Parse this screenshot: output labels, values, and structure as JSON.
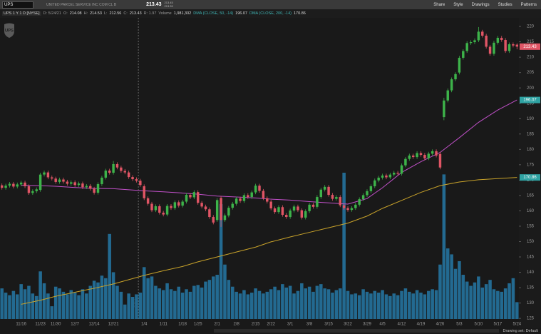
{
  "header": {
    "symbol": "UPS",
    "company": "UNITED PARCEL SERVICE INC COM CL B",
    "bid": "213.45",
    "ask": "213.39",
    "buttons": [
      "Share",
      "Style",
      "Drawings",
      "Studies",
      "Patterns"
    ],
    "chart_label": "UPS 1 Y 1 D [NYSE]",
    "date": "D: 5/24/21",
    "o_label": "O:",
    "h_label": "H:",
    "l_label": "L:",
    "c_label": "C:",
    "range": "R: 1.97",
    "volume_label": "Volume",
    "volume": "1,981,302",
    "logo": "UPS"
  },
  "footer": {
    "drawing_set": "Drawing set: Default"
  },
  "chart_data": {
    "type": "candlestick",
    "up_color": "#3db34a",
    "down_color": "#e05565",
    "separator_label": "2021",
    "categories": [
      null,
      null,
      null,
      null,
      null,
      "11/16",
      null,
      null,
      null,
      null,
      "11/23",
      null,
      null,
      null,
      "11/30",
      null,
      null,
      null,
      null,
      "12/7",
      null,
      null,
      null,
      null,
      "12/14",
      null,
      null,
      null,
      null,
      "12/21",
      null,
      null,
      null,
      null,
      null,
      null,
      null,
      "1/4",
      null,
      null,
      null,
      null,
      "1/11",
      null,
      null,
      null,
      null,
      "1/18",
      null,
      null,
      null,
      "1/25",
      null,
      null,
      null,
      null,
      "2/1",
      null,
      null,
      null,
      null,
      "2/8",
      null,
      null,
      null,
      null,
      "2/15",
      null,
      null,
      null,
      "2/22",
      null,
      null,
      null,
      null,
      "3/1",
      null,
      null,
      null,
      null,
      "3/8",
      null,
      null,
      null,
      null,
      "3/15",
      null,
      null,
      null,
      null,
      "3/22",
      null,
      null,
      null,
      null,
      "3/29",
      null,
      null,
      null,
      "4/5",
      null,
      null,
      null,
      null,
      "4/12",
      null,
      null,
      null,
      null,
      "4/19",
      null,
      null,
      null,
      null,
      "4/26",
      null,
      null,
      null,
      null,
      "5/3",
      null,
      null,
      null,
      null,
      "5/10",
      null,
      null,
      null,
      null,
      "5/17",
      null,
      null,
      null,
      null,
      "5/24"
    ],
    "open": [
      168.3,
      167.5,
      168.2,
      168.8,
      167.9,
      168.6,
      169.2,
      168.0,
      165.8,
      166.4,
      166.8,
      171.8,
      172.5,
      170.9,
      170.5,
      169.4,
      170.2,
      169.5,
      168.8,
      169.3,
      168.4,
      168.9,
      167.7,
      168.1,
      167.2,
      165.9,
      168.7,
      170.8,
      173.1,
      172.4,
      175.2,
      174.1,
      173.0,
      172.5,
      171.0,
      170.3,
      169.8,
      168.0,
      164.1,
      162.3,
      160.2,
      161.5,
      159.4,
      158.8,
      161.6,
      160.9,
      162.8,
      161.7,
      163.0,
      165.2,
      164.4,
      166.1,
      162.6,
      161.4,
      160.5,
      158.0,
      157.0,
      164.2,
      157.0,
      158.5,
      161.0,
      162.3,
      164.0,
      163.2,
      165.1,
      164.5,
      166.0,
      168.2,
      166.5,
      164.1,
      163.0,
      160.8,
      159.6,
      161.2,
      158.7,
      158.0,
      160.1,
      161.4,
      160.2,
      157.8,
      159.9,
      162.0,
      161.3,
      164.5,
      166.9,
      167.8,
      165.2,
      163.9,
      164.5,
      161.8,
      160.9,
      160.3,
      160.9,
      162.0,
      163.8,
      165.1,
      166.4,
      168.0,
      169.9,
      170.8,
      171.5,
      170.9,
      171.8,
      172.4,
      172.1,
      174.8,
      176.9,
      178.0,
      177.5,
      178.8,
      178.2,
      177.1,
      178.6,
      179.4,
      178.5,
      190.5,
      195.9,
      199.2,
      202.8,
      205.0,
      209.8,
      212.0,
      214.6,
      214.9,
      215.5,
      218.3,
      217.0,
      213.4,
      211.1,
      214.7,
      216.3,
      215.6,
      212.0,
      214.2,
      214.08
    ],
    "high": [
      168.9,
      168.8,
      169.4,
      169.4,
      169.2,
      169.8,
      169.8,
      168.6,
      167.0,
      167.6,
      172.4,
      173.1,
      173.1,
      171.5,
      171.1,
      170.8,
      170.8,
      170.1,
      169.9,
      169.9,
      169.5,
      169.5,
      168.7,
      168.7,
      167.8,
      169.3,
      171.4,
      173.7,
      173.7,
      176.2,
      175.8,
      174.7,
      173.6,
      173.1,
      171.6,
      170.9,
      170.4,
      168.6,
      164.7,
      162.9,
      162.1,
      162.1,
      160.0,
      162.2,
      162.2,
      163.4,
      163.4,
      163.6,
      165.8,
      165.8,
      166.7,
      166.7,
      163.2,
      162.0,
      161.1,
      158.6,
      164.1,
      164.8,
      159.1,
      161.6,
      162.9,
      164.6,
      164.6,
      165.7,
      165.7,
      166.6,
      168.8,
      168.8,
      167.1,
      164.7,
      163.6,
      161.4,
      161.8,
      161.8,
      159.3,
      160.7,
      162.0,
      162.0,
      160.8,
      160.5,
      162.6,
      162.6,
      165.1,
      167.5,
      168.4,
      168.4,
      165.8,
      165.1,
      165.1,
      162.4,
      161.5,
      161.5,
      162.6,
      164.4,
      165.7,
      167.0,
      168.6,
      170.5,
      171.4,
      172.1,
      172.1,
      172.4,
      173.0,
      173.0,
      175.4,
      177.5,
      178.6,
      178.6,
      179.4,
      179.4,
      178.8,
      179.2,
      180.0,
      180.0,
      179.1,
      196.8,
      199.8,
      203.4,
      205.1,
      210.4,
      212.6,
      215.2,
      215.5,
      216.1,
      219.8,
      218.9,
      217.6,
      214.0,
      215.3,
      216.9,
      216.9,
      216.2,
      214.8,
      214.8,
      214.53
    ],
    "low": [
      166.9,
      166.9,
      167.6,
      167.3,
      167.3,
      168.0,
      167.4,
      165.2,
      165.2,
      165.8,
      166.2,
      171.2,
      170.3,
      169.9,
      168.8,
      168.8,
      168.9,
      168.2,
      168.2,
      167.8,
      167.8,
      167.1,
      167.1,
      166.6,
      165.3,
      165.3,
      168.1,
      170.2,
      171.8,
      171.8,
      173.5,
      172.4,
      171.9,
      170.4,
      169.7,
      169.2,
      167.8,
      163.5,
      161.7,
      159.6,
      159.6,
      158.8,
      158.2,
      158.2,
      160.3,
      160.3,
      161.1,
      161.1,
      162.4,
      163.8,
      163.8,
      162.0,
      160.8,
      159.9,
      157.4,
      155.6,
      156.4,
      154.8,
      156.4,
      157.9,
      160.4,
      161.7,
      162.6,
      162.6,
      163.9,
      163.9,
      165.4,
      165.9,
      163.5,
      162.4,
      160.2,
      159.0,
      159.0,
      158.1,
      157.4,
      157.4,
      159.5,
      159.6,
      157.2,
      157.2,
      159.3,
      160.7,
      160.7,
      163.9,
      166.3,
      164.6,
      163.3,
      163.3,
      161.2,
      160.3,
      159.7,
      159.7,
      160.3,
      161.4,
      163.2,
      164.5,
      165.8,
      167.4,
      169.3,
      170.2,
      170.3,
      170.3,
      171.2,
      171.5,
      171.5,
      174.2,
      176.3,
      176.9,
      176.9,
      177.6,
      176.5,
      176.5,
      178.0,
      177.4,
      173.5,
      189.5,
      195.3,
      198.6,
      202.2,
      204.4,
      209.2,
      211.4,
      214.0,
      214.3,
      214.9,
      216.4,
      212.8,
      210.5,
      210.5,
      214.1,
      215.0,
      211.4,
      211.4,
      213.2,
      212.56
    ],
    "close": [
      167.5,
      168.2,
      168.8,
      167.9,
      168.6,
      169.2,
      168.0,
      165.8,
      166.4,
      167.0,
      171.8,
      172.5,
      170.9,
      170.5,
      169.4,
      170.2,
      169.5,
      168.8,
      169.3,
      168.4,
      168.9,
      167.7,
      168.1,
      167.2,
      165.9,
      168.7,
      170.8,
      173.1,
      172.4,
      175.2,
      174.1,
      173.0,
      172.5,
      171.0,
      170.3,
      169.8,
      168.4,
      164.1,
      162.3,
      160.2,
      161.5,
      159.4,
      158.8,
      161.6,
      160.9,
      162.8,
      161.7,
      163.0,
      165.2,
      164.4,
      166.1,
      162.6,
      161.4,
      160.5,
      158.0,
      156.2,
      163.5,
      157.0,
      158.5,
      161.0,
      162.3,
      164.0,
      163.2,
      165.1,
      164.5,
      166.0,
      168.2,
      166.5,
      164.1,
      163.0,
      160.8,
      159.6,
      161.2,
      158.7,
      158.0,
      160.1,
      161.4,
      160.2,
      157.8,
      159.9,
      162.0,
      161.3,
      164.5,
      166.9,
      167.8,
      165.2,
      163.9,
      164.5,
      161.8,
      160.9,
      160.3,
      160.9,
      162.0,
      163.8,
      165.1,
      166.4,
      168.0,
      169.9,
      170.8,
      171.5,
      170.9,
      171.8,
      172.4,
      172.1,
      174.8,
      176.9,
      178.0,
      177.5,
      178.8,
      178.2,
      177.1,
      178.6,
      179.4,
      178.0,
      174.1,
      195.9,
      199.2,
      202.8,
      204.5,
      209.8,
      212.0,
      214.6,
      214.9,
      215.5,
      218.3,
      217.0,
      213.4,
      211.1,
      214.7,
      216.3,
      215.6,
      212.0,
      214.2,
      213.8,
      213.43
    ],
    "volume": {
      "color": "#236a91",
      "values": [
        3600000,
        3100000,
        2800000,
        3300000,
        2900000,
        4100000,
        3500000,
        3900000,
        3000000,
        2700000,
        5600000,
        4200000,
        3000000,
        1500000,
        3800000,
        3600000,
        3200000,
        2900000,
        3400000,
        3100000,
        2800000,
        3500000,
        3000000,
        3900000,
        4500000,
        4300000,
        5100000,
        4800000,
        10000000,
        5500000,
        3900000,
        3200000,
        1700000,
        3000000,
        2600000,
        2900000,
        3100000,
        6100000,
        4800000,
        5000000,
        3900000,
        3600000,
        3400000,
        4200000,
        3500000,
        3300000,
        3800000,
        3100000,
        3500000,
        3200000,
        3900000,
        4000000,
        3700000,
        4400000,
        4600000,
        5000000,
        5200000,
        13500000,
        6400000,
        4600000,
        3800000,
        3200000,
        3000000,
        3400000,
        2900000,
        3100000,
        3600000,
        3300000,
        3000000,
        3200000,
        3500000,
        3800000,
        3400000,
        4100000,
        3700000,
        3900000,
        3000000,
        3300000,
        4200000,
        3600000,
        3800000,
        3200000,
        3900000,
        4100000,
        3600000,
        3500000,
        3100000,
        3400000,
        3600000,
        17200000,
        3300000,
        2900000,
        3000000,
        2800000,
        3500000,
        3200000,
        3000000,
        3300000,
        3100000,
        3400000,
        2900000,
        2700000,
        3000000,
        2800000,
        3300000,
        3600000,
        3200000,
        3000000,
        3400000,
        3100000,
        2900000,
        3300000,
        3500000,
        3400000,
        6400000,
        17000000,
        8300000,
        7600000,
        5900000,
        6800000,
        5200000,
        4400000,
        3900000,
        4300000,
        5000000,
        3700000,
        4100000,
        4600000,
        3500000,
        3300000,
        3200000,
        3600000,
        4200000,
        4800000,
        1981302
      ]
    },
    "lines": [
      {
        "name": "DMA (CLOSE, 50, -14)",
        "color": "#c050c8",
        "label_color": "#2fa3a3",
        "x": [
          "11/16",
          "11/23",
          "11/30",
          "12/7",
          "12/14",
          "12/21",
          "1/4",
          "1/11",
          "1/18",
          "1/25",
          "2/1",
          "2/8",
          "2/15",
          "2/22",
          "3/1",
          "3/8",
          "3/15",
          "3/22",
          "3/29",
          "4/5",
          "4/12",
          "4/19",
          "4/26",
          "5/3",
          "5/10",
          "5/17",
          "5/24"
        ],
        "values": [
          168.3,
          168.2,
          168.0,
          167.6,
          167.3,
          167.2,
          166.5,
          166.2,
          165.8,
          165.4,
          164.8,
          164.5,
          164.2,
          163.8,
          163.5,
          163.0,
          162.6,
          162.2,
          164.0,
          167.5,
          172.5,
          176.0,
          179.0,
          183.8,
          188.8,
          192.8,
          196.07
        ]
      },
      {
        "name": "DMA (CLOSE, 200, -14)",
        "color": "#c9a32a",
        "label_color": "#2fa3a3",
        "x": [
          "11/16",
          "11/23",
          "11/30",
          "12/7",
          "12/14",
          "12/21",
          "1/4",
          "1/11",
          "1/18",
          "1/25",
          "2/1",
          "2/8",
          "2/15",
          "2/22",
          "3/1",
          "3/8",
          "3/15",
          "3/22",
          "3/29",
          "4/5",
          "4/12",
          "4/19",
          "4/26",
          "5/3",
          "5/10",
          "5/17",
          "5/24"
        ],
        "values": [
          129.6,
          130.9,
          132.2,
          133.5,
          134.8,
          136.2,
          139.0,
          140.5,
          141.9,
          143.4,
          145.0,
          146.6,
          148.2,
          149.9,
          151.5,
          153.0,
          154.5,
          156.0,
          158.3,
          160.8,
          163.4,
          166.0,
          168.2,
          169.4,
          170.1,
          170.5,
          170.86
        ]
      }
    ],
    "ylim": [
      124.8,
      222.8
    ],
    "yticks": [
      125,
      130,
      135,
      140,
      145,
      150,
      155,
      160,
      165,
      170,
      175,
      180,
      185,
      190,
      195,
      200,
      205,
      210,
      215,
      220
    ]
  }
}
